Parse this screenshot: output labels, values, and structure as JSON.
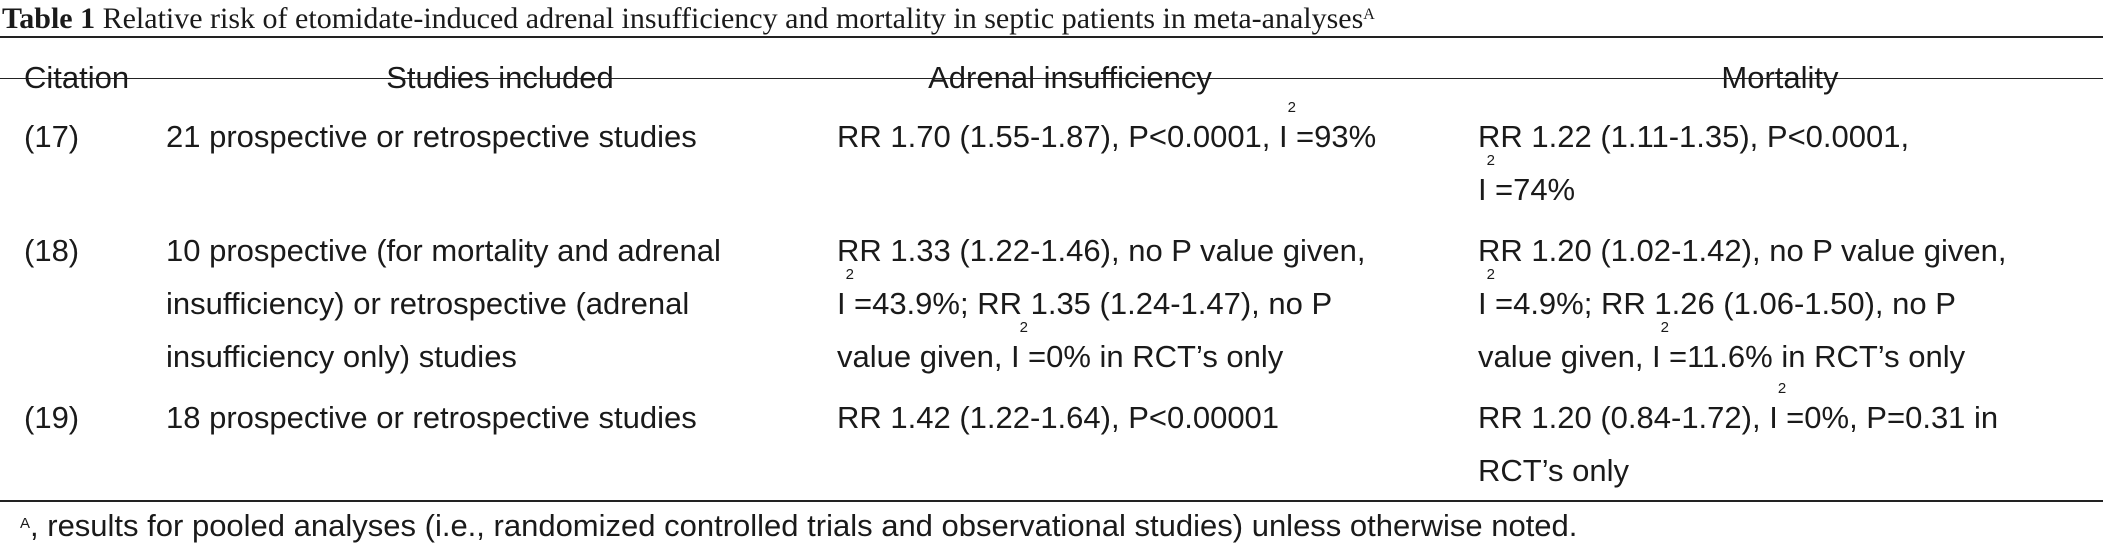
{
  "caption": {
    "label": "Table 1",
    "text": "Relative risk of etomidate-induced adrenal insufficiency and mortality in septic patients in meta-analyses",
    "superscript": "A"
  },
  "table": {
    "headers": [
      "Citation",
      "Studies included",
      "Adrenal insufficiency",
      "Mortality"
    ],
    "rows": [
      {
        "citation": "(17)",
        "studies": [
          "21 prospective or retrospective studies"
        ],
        "adrenal": [
          {
            "t": "RR 1.70 (1.55-1.87), P<0.0001, I"
          },
          {
            "sup": "2"
          },
          {
            "t": "=93%"
          }
        ],
        "mortality_lines": [
          [
            {
              "t": "RR 1.22 (1.11-1.35), P<0.0001,"
            }
          ],
          [
            {
              "t": "I"
            },
            {
              "sup": "2"
            },
            {
              "t": "=74%"
            }
          ]
        ]
      },
      {
        "citation": "(18)",
        "studies": [
          "10 prospective (for mortality and adrenal",
          "insufficiency) or retrospective (adrenal",
          "insufficiency only) studies"
        ],
        "adrenal_lines": [
          [
            {
              "t": "RR 1.33 (1.22-1.46), no P value given,"
            }
          ],
          [
            {
              "t": "I"
            },
            {
              "sup": "2"
            },
            {
              "t": "=43.9%; RR 1.35 (1.24-1.47), no P"
            }
          ],
          [
            {
              "t": "value given, I"
            },
            {
              "sup": "2"
            },
            {
              "t": "=0% in RCT’s only"
            }
          ]
        ],
        "mortality_lines": [
          [
            {
              "t": "RR 1.20 (1.02-1.42), no P value given,"
            }
          ],
          [
            {
              "t": "I"
            },
            {
              "sup": "2"
            },
            {
              "t": "=4.9%; RR 1.26 (1.06-1.50), no P"
            }
          ],
          [
            {
              "t": "value given, I"
            },
            {
              "sup": "2"
            },
            {
              "t": "=11.6% in RCT’s only"
            }
          ]
        ]
      },
      {
        "citation": "(19)",
        "studies": [
          "18 prospective or retrospective studies"
        ],
        "adrenal_lines": [
          [
            {
              "t": "RR 1.42 (1.22-1.64), P<0.00001"
            }
          ]
        ],
        "mortality_lines": [
          [
            {
              "t": "RR 1.20 (0.84-1.72), I"
            },
            {
              "sup": "2"
            },
            {
              "t": "=0%, P=0.31 in"
            }
          ],
          [
            {
              "t": "RCT’s only"
            }
          ]
        ]
      }
    ]
  },
  "footnote": {
    "superscript": "A",
    "text": ", results for pooled analyses (i.e., randomized controlled trials and observational studies) unless otherwise noted."
  }
}
